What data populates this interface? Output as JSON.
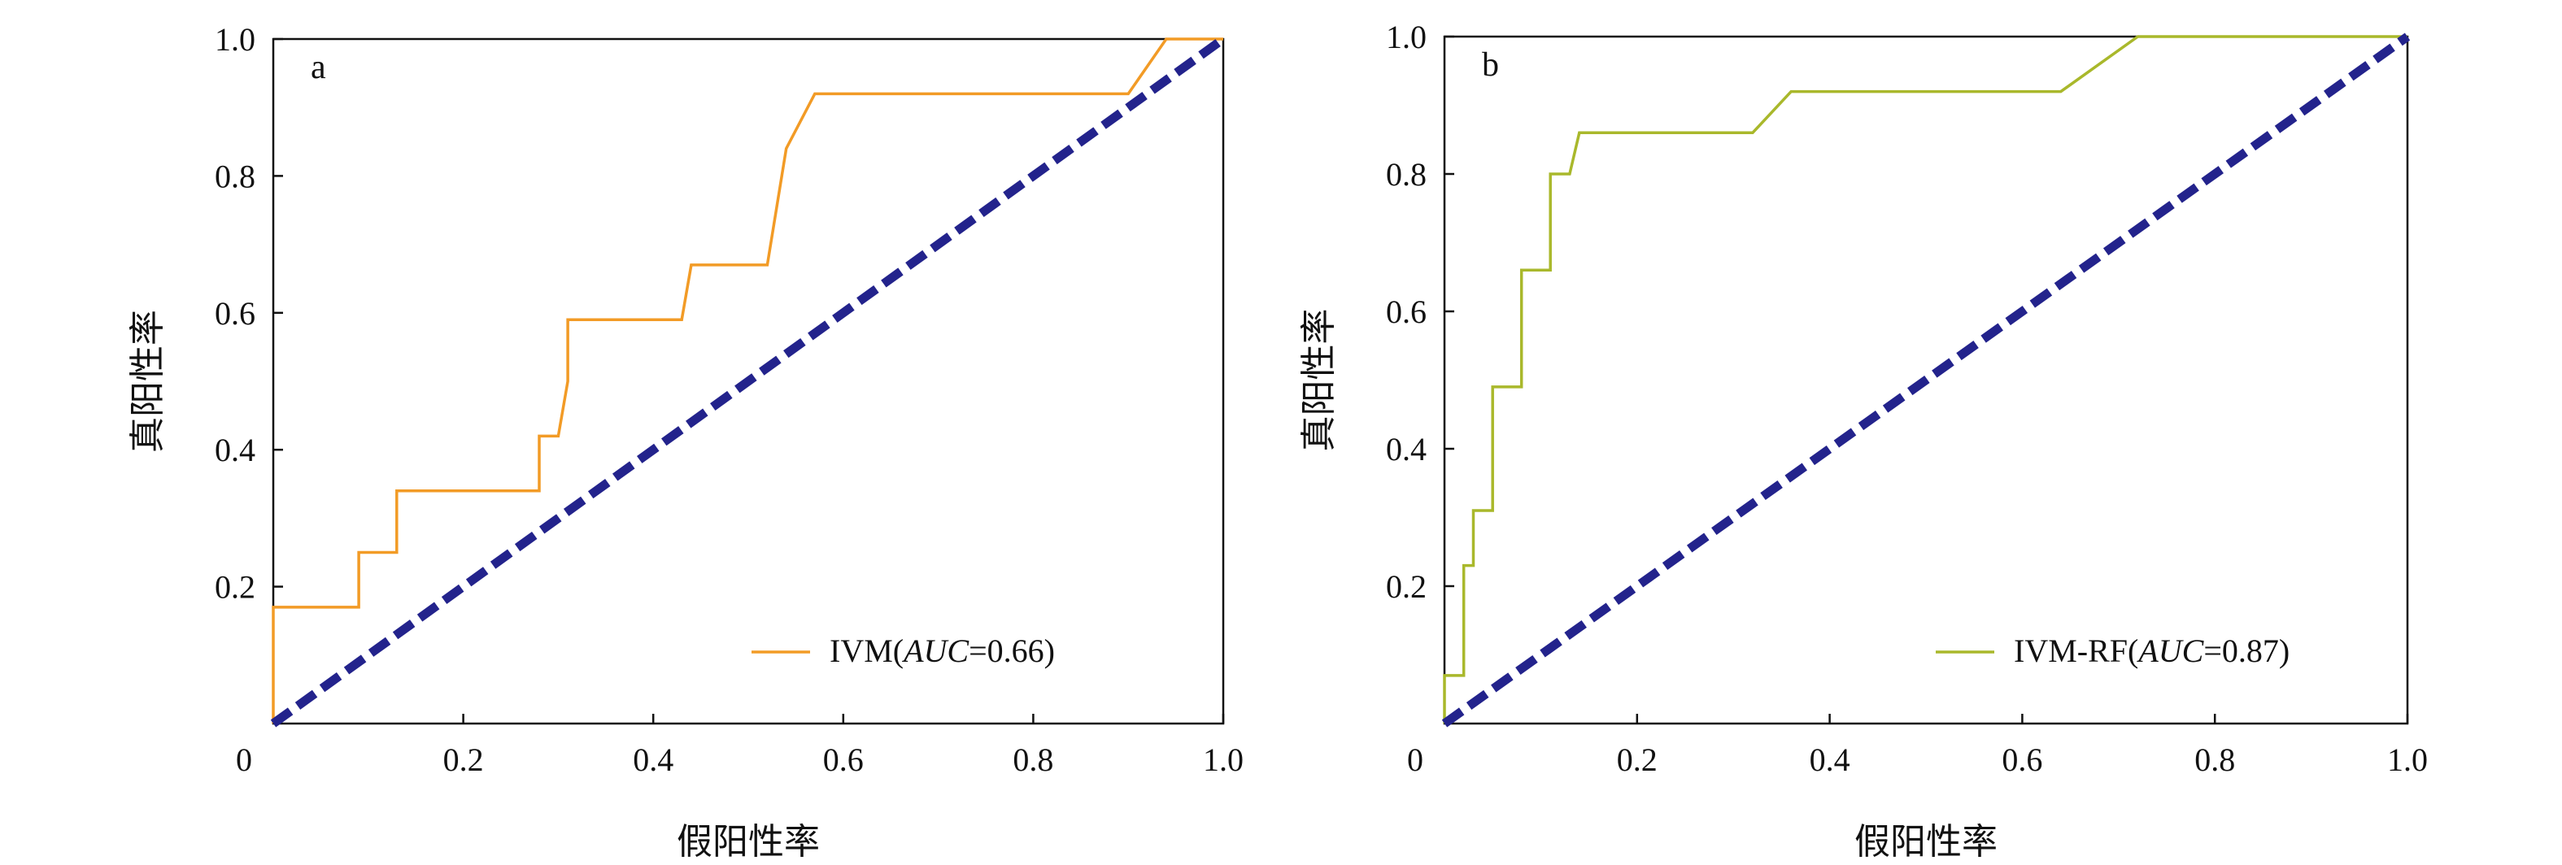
{
  "chart_data": [
    {
      "type": "line",
      "panel_label": "a",
      "xlabel": "假阳性率",
      "ylabel": "真阳性率",
      "xlim": [
        0,
        1.0
      ],
      "ylim": [
        0,
        1.0
      ],
      "x_ticks": [
        0.2,
        0.4,
        0.6,
        0.8,
        1.0
      ],
      "x_tick_labels": [
        "0.2",
        "0.4",
        "0.6",
        "0.8",
        "1.0"
      ],
      "origin_label": "0",
      "y_ticks": [
        0.2,
        0.4,
        0.6,
        0.8,
        1.0
      ],
      "y_tick_labels": [
        "0.2",
        "0.4",
        "0.6",
        "0.8",
        "1.0"
      ],
      "grid": false,
      "legend_position": "bottom-right",
      "series": [
        {
          "name": "IVM",
          "legend_prefix": "IVM(",
          "legend_italic": "AUC",
          "legend_suffix": "=0.66)",
          "color": "#F29B26",
          "style": "solid",
          "points": [
            [
              0,
              0
            ],
            [
              0,
              0.17
            ],
            [
              0.09,
              0.17
            ],
            [
              0.09,
              0.25
            ],
            [
              0.13,
              0.25
            ],
            [
              0.13,
              0.34
            ],
            [
              0.28,
              0.34
            ],
            [
              0.28,
              0.42
            ],
            [
              0.3,
              0.42
            ],
            [
              0.31,
              0.5
            ],
            [
              0.31,
              0.59
            ],
            [
              0.43,
              0.59
            ],
            [
              0.44,
              0.67
            ],
            [
              0.52,
              0.67
            ],
            [
              0.54,
              0.84
            ],
            [
              0.57,
              0.92
            ],
            [
              0.9,
              0.92
            ],
            [
              0.94,
              1.0
            ],
            [
              1.0,
              1.0
            ]
          ]
        },
        {
          "name": "",
          "color": "#23238C",
          "style": "dashed",
          "points": [
            [
              0,
              0
            ],
            [
              1.0,
              1.0
            ]
          ]
        }
      ]
    },
    {
      "type": "line",
      "panel_label": "b",
      "xlabel": "假阳性率",
      "ylabel": "真阳性率",
      "xlim": [
        0,
        1.0
      ],
      "ylim": [
        0,
        1.0
      ],
      "x_ticks": [
        0.2,
        0.4,
        0.6,
        0.8,
        1.0
      ],
      "x_tick_labels": [
        "0.2",
        "0.4",
        "0.6",
        "0.8",
        "1.0"
      ],
      "origin_label": "0",
      "y_ticks": [
        0.2,
        0.4,
        0.6,
        0.8,
        1.0
      ],
      "y_tick_labels": [
        "0.2",
        "0.4",
        "0.6",
        "0.8",
        "1.0"
      ],
      "grid": false,
      "legend_position": "bottom-right",
      "series": [
        {
          "name": "IVM-RF",
          "legend_prefix": "IVM-RF(",
          "legend_italic": "AUC",
          "legend_suffix": "=0.87)",
          "color": "#A9B82B",
          "style": "solid",
          "points": [
            [
              0,
              0
            ],
            [
              0,
              0.07
            ],
            [
              0.02,
              0.07
            ],
            [
              0.02,
              0.23
            ],
            [
              0.03,
              0.23
            ],
            [
              0.03,
              0.31
            ],
            [
              0.05,
              0.31
            ],
            [
              0.05,
              0.49
            ],
            [
              0.08,
              0.49
            ],
            [
              0.08,
              0.66
            ],
            [
              0.11,
              0.66
            ],
            [
              0.11,
              0.8
            ],
            [
              0.13,
              0.8
            ],
            [
              0.14,
              0.86
            ],
            [
              0.32,
              0.86
            ],
            [
              0.36,
              0.92
            ],
            [
              0.64,
              0.92
            ],
            [
              0.72,
              1.0
            ],
            [
              1.0,
              1.0
            ]
          ]
        },
        {
          "name": "",
          "color": "#23238C",
          "style": "dashed",
          "points": [
            [
              0,
              0
            ],
            [
              1.0,
              1.0
            ]
          ]
        }
      ]
    }
  ]
}
